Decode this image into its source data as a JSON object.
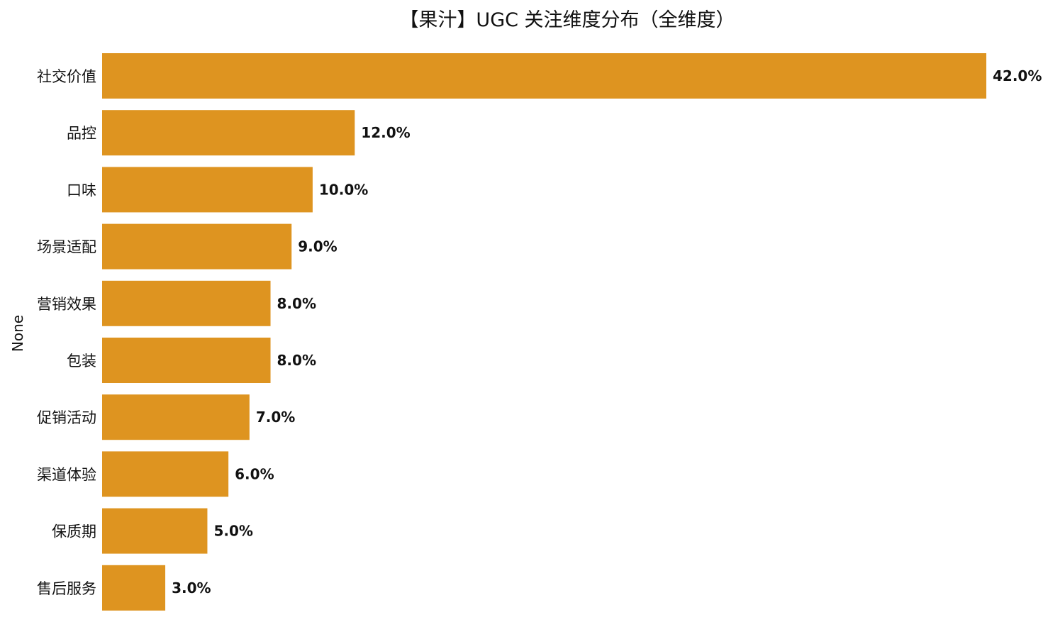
{
  "chart_data": {
    "type": "bar",
    "orientation": "horizontal",
    "title": "【果汁】UGC 关注维度分布（全维度）",
    "ylabel": "None",
    "xlabel": "",
    "categories": [
      "社交价值",
      "品控",
      "口味",
      "场景适配",
      "营销效果",
      "包装",
      "促销活动",
      "渠道体验",
      "保质期",
      "售后服务"
    ],
    "values": [
      42.0,
      12.0,
      10.0,
      9.0,
      8.0,
      8.0,
      7.0,
      6.0,
      5.0,
      3.0
    ],
    "value_labels": [
      "42.0%",
      "12.0%",
      "10.0%",
      "9.0%",
      "8.0%",
      "8.0%",
      "7.0%",
      "6.0%",
      "5.0%",
      "3.0%"
    ],
    "xlim": [
      0,
      42
    ],
    "bar_color": "#DE9420",
    "grid": false,
    "legend": "none"
  }
}
